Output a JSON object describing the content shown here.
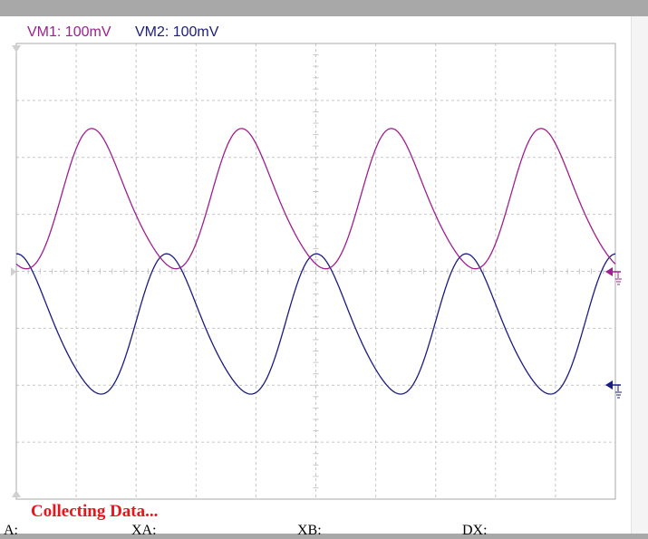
{
  "channels": [
    {
      "label": "VM1: 100mV",
      "color": "#9e1f8f"
    },
    {
      "label": "VM2: 100mV",
      "color": "#1a1d7e"
    }
  ],
  "status": "Collecting Data...",
  "readouts": {
    "a": "A:",
    "xa": "XA:",
    "xb": "XB:",
    "dx": "DX:"
  },
  "grid": {
    "divisions_x": 10,
    "divisions_y": 8,
    "color": "#c6c6c6",
    "style": "dashed"
  },
  "traces": {
    "vm1": {
      "cycles": 4,
      "amplitude_divisions": 1.28,
      "offset_divisions": 1.2,
      "phase_deg": 260
    },
    "vm2": {
      "cycles": 4,
      "amplitude_divisions": 1.28,
      "offset_divisions": -1.0,
      "phase_deg": 80
    }
  }
}
